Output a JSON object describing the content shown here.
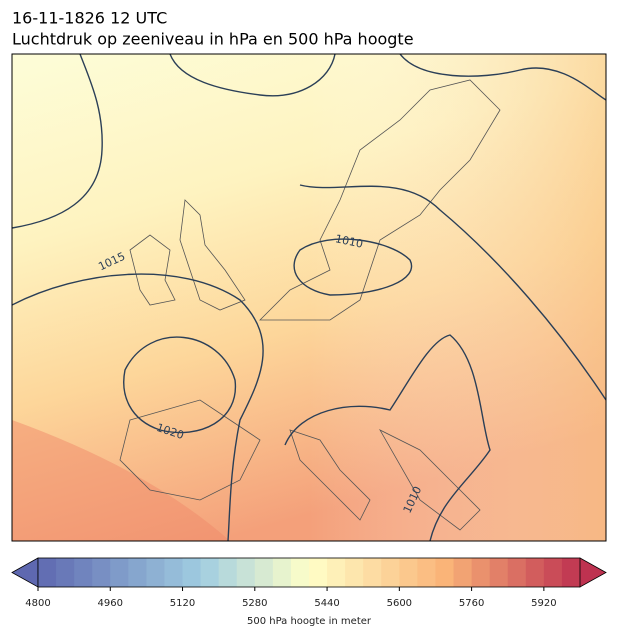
{
  "title": "16-11-1826 12 UTC",
  "subtitle": "Luchtdruk op zeeniveau in hPa en 500 hPa hoogte",
  "contour_labels": [
    1015,
    1010,
    1020,
    1010
  ],
  "colorbar": {
    "label": "500 hPa hoogte in meter",
    "lim": [
      4800,
      6000
    ],
    "ticks": [
      4800,
      4960,
      5120,
      5280,
      5440,
      5600,
      5760,
      5920
    ]
  }
}
